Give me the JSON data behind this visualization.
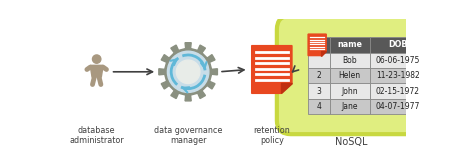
{
  "bg_color": "#ffffff",
  "person_color": "#a89880",
  "gear_color": "#8a9080",
  "gear_inner_color": "#c8dde8",
  "gear_hole_color": "#e8ece8",
  "doc_color": "#e84820",
  "doc_fold_color": "#c03010",
  "doc_line_color": "#ffffff",
  "arrow_color": "#404040",
  "db_outer_color": "#c8d840",
  "db_inner_color": "#e0ee80",
  "table_header_bg": "#585858",
  "table_header_fg": "#ffffff",
  "table_row_light": "#e8e8e8",
  "table_row_dark": "#c8c8c8",
  "table_border": "#888888",
  "label_color": "#404040",
  "labels": [
    "database\nadministrator",
    "data governance\nmanager",
    "retention\npolicy",
    "NoSQL"
  ],
  "table_rows": [
    [
      "",
      "Bob",
      "06-06-1975"
    ],
    [
      "2",
      "Helen",
      "11-23-1982"
    ],
    [
      "3",
      "John",
      "02-15-1972"
    ],
    [
      "4",
      "Jane",
      "04-07-1977"
    ]
  ]
}
